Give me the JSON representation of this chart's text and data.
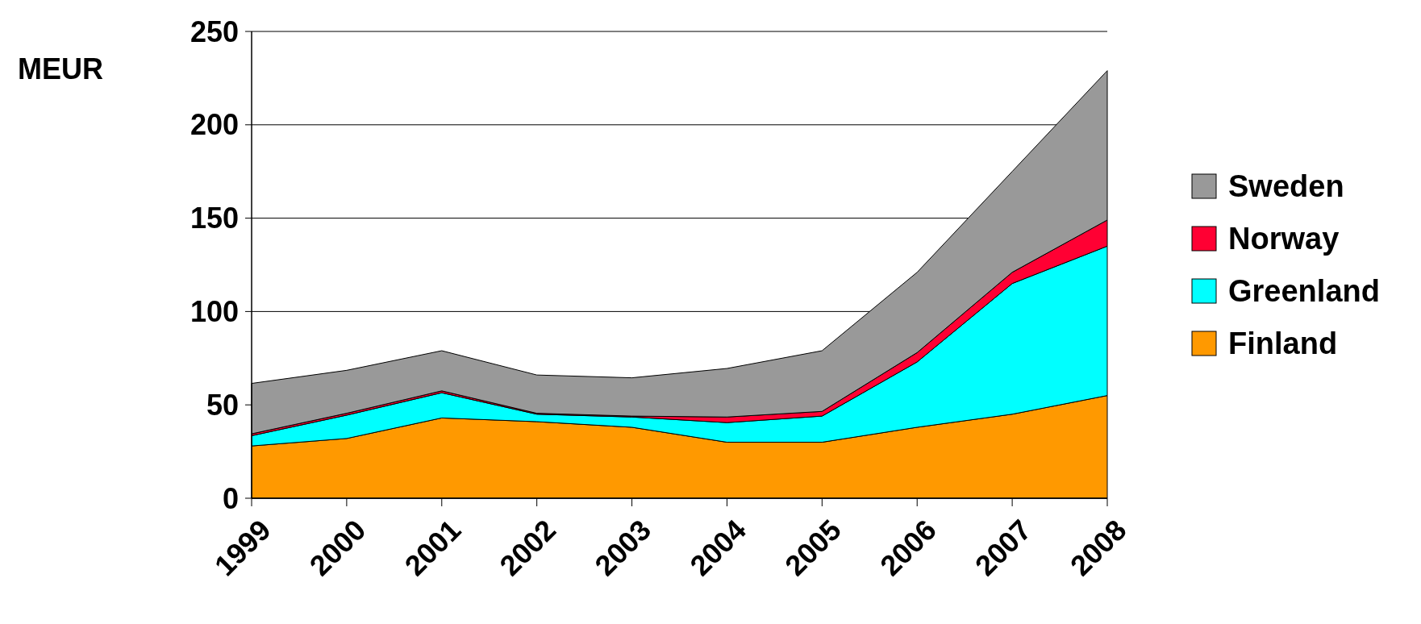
{
  "chart_data": {
    "type": "area",
    "stacked": true,
    "ylabel": "MEUR",
    "categories": [
      "1999",
      "2000",
      "2001",
      "2002",
      "2003",
      "2004",
      "2005",
      "2006",
      "2007",
      "2008"
    ],
    "series": [
      {
        "name": "Finland",
        "color": "#ff9900",
        "values": [
          28,
          32,
          43,
          41,
          38,
          30,
          30,
          38,
          45,
          55
        ]
      },
      {
        "name": "Greenland",
        "color": "#00ffff",
        "values": [
          5.5,
          12.5,
          13.5,
          4,
          5.5,
          10.5,
          14,
          35,
          70,
          80
        ]
      },
      {
        "name": "Norway",
        "color": "#ff0033",
        "values": [
          1,
          1,
          1,
          0.5,
          0.5,
          3,
          2.5,
          5,
          6,
          14
        ]
      },
      {
        "name": "Sweden",
        "color": "#999999",
        "values": [
          27,
          23,
          21.5,
          20.5,
          20.5,
          26,
          32.5,
          43,
          54,
          80
        ]
      }
    ],
    "ylim": [
      0,
      250
    ],
    "yticks": [
      0,
      50,
      100,
      150,
      200,
      250
    ],
    "grid": "y",
    "legend": "right"
  }
}
